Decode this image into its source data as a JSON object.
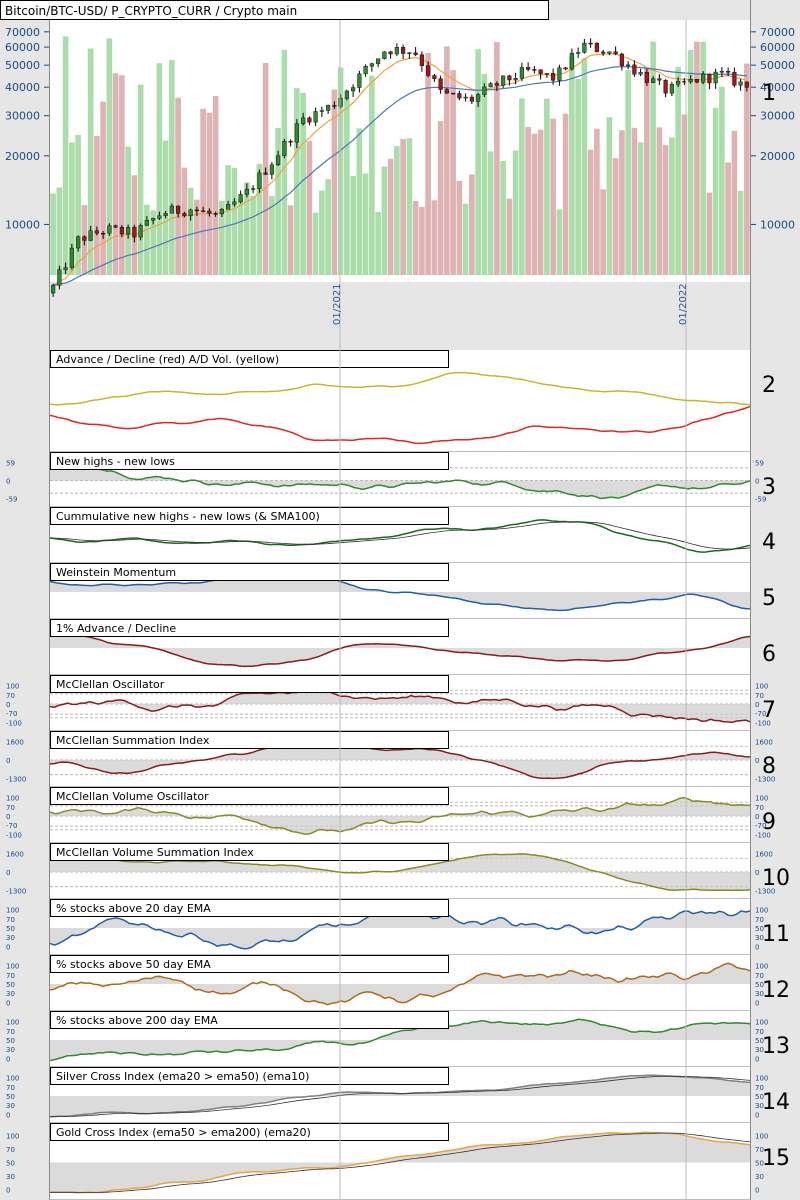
{
  "window_title": "Bitcoin/BTC-USD/ P_CRYPTO_CURR / Crypto main",
  "x_axis": {
    "labels": [
      "01/2021",
      "01/2022"
    ]
  },
  "main": {
    "number": "1",
    "y_ticks": [
      "70000",
      "60000",
      "50000",
      "40000",
      "30000",
      "20000",
      "10000"
    ]
  },
  "panels": [
    {
      "number": "2",
      "title": "Advance / Decline (red) A/D Vol. (yellow)",
      "ticks": []
    },
    {
      "number": "3",
      "title": "New highs - new lows",
      "ticks": [
        "59",
        "0",
        "-59"
      ]
    },
    {
      "number": "4",
      "title": "Cummulative new highs - new lows (& SMA100)",
      "ticks": []
    },
    {
      "number": "5",
      "title": "Weinstein Momentum",
      "ticks": []
    },
    {
      "number": "6",
      "title": "1% Advance / Decline",
      "ticks": []
    },
    {
      "number": "7",
      "title": "McClellan Oscillator",
      "ticks": [
        "100",
        "70",
        "0",
        "-70",
        "-100"
      ]
    },
    {
      "number": "8",
      "title": "McClellan Summation Index",
      "ticks": [
        "1600",
        "0",
        "-1300"
      ]
    },
    {
      "number": "9",
      "title": "McClellan Volume Oscillator",
      "ticks": [
        "100",
        "70",
        "0",
        "-70",
        "-100"
      ]
    },
    {
      "number": "10",
      "title": "McClellan Volume Summation Index",
      "ticks": [
        "1600",
        "0",
        "-1300"
      ]
    },
    {
      "number": "11",
      "title": "% stocks above 20 day EMA",
      "ticks": [
        "100",
        "70",
        "50",
        "30",
        "0"
      ]
    },
    {
      "number": "12",
      "title": "% stocks above 50 day EMA",
      "ticks": [
        "100",
        "70",
        "50",
        "30",
        "0"
      ]
    },
    {
      "number": "13",
      "title": "% stocks above 200 day EMA",
      "ticks": [
        "100",
        "70",
        "50",
        "30",
        "0"
      ]
    },
    {
      "number": "14",
      "title": "Silver Cross Index (ema20 > ema50) (ema10)",
      "ticks": [
        "100",
        "70",
        "50",
        "30",
        "0"
      ]
    },
    {
      "number": "15",
      "title": "Gold Cross Index (ema50 > ema200) (ema20)",
      "ticks": [
        "100",
        "70",
        "50",
        "30",
        "0"
      ]
    }
  ],
  "chart_data": {
    "type": "line",
    "title": "Bitcoin/BTC-USD/ P_CRYPTO_CURR / Crypto main",
    "y_scale": "log",
    "ylim": [
      6000,
      75000
    ],
    "x_start": "2020-03",
    "x_end": "2022-04",
    "series": [],
    "price_close": [
      {
        "x": "2020-03",
        "y": 5000
      },
      {
        "x": "2020-04",
        "y": 8600
      },
      {
        "x": "2020-05",
        "y": 9500
      },
      {
        "x": "2020-06",
        "y": 9100
      },
      {
        "x": "2020-07",
        "y": 11300
      },
      {
        "x": "2020-08",
        "y": 11700
      },
      {
        "x": "2020-09",
        "y": 10800
      },
      {
        "x": "2020-10",
        "y": 13800
      },
      {
        "x": "2020-11",
        "y": 19700
      },
      {
        "x": "2020-12",
        "y": 29000
      },
      {
        "x": "2021-01",
        "y": 33100
      },
      {
        "x": "2021-02",
        "y": 45000
      },
      {
        "x": "2021-03",
        "y": 58800
      },
      {
        "x": "2021-04",
        "y": 57800
      },
      {
        "x": "2021-05",
        "y": 37300
      },
      {
        "x": "2021-06",
        "y": 35000
      },
      {
        "x": "2021-07",
        "y": 41500
      },
      {
        "x": "2021-08",
        "y": 47100
      },
      {
        "x": "2021-09",
        "y": 43800
      },
      {
        "x": "2021-10",
        "y": 61300
      },
      {
        "x": "2021-11",
        "y": 57000
      },
      {
        "x": "2021-12",
        "y": 46300
      },
      {
        "x": "2022-01",
        "y": 38500
      },
      {
        "x": "2022-02",
        "y": 43200
      },
      {
        "x": "2022-03",
        "y": 45500
      },
      {
        "x": "2022-04",
        "y": 39500
      }
    ],
    "colors": {
      "price_up": "#2e8b2e",
      "price_down": "#a01818",
      "ema_short": "#f0a040",
      "ema_long": "#4a78b8",
      "volume_up": "#8fd18f",
      "volume_down": "#d49a9a",
      "ad_line": "#e02818",
      "ad_vol": "#c8b828",
      "green": "#2e8b2e",
      "blue": "#2060a8",
      "maroon": "#8b1a1a",
      "olive": "#8a8a20",
      "orange": "#b06818",
      "gray": "#808080",
      "gold": "#f0a040"
    }
  }
}
